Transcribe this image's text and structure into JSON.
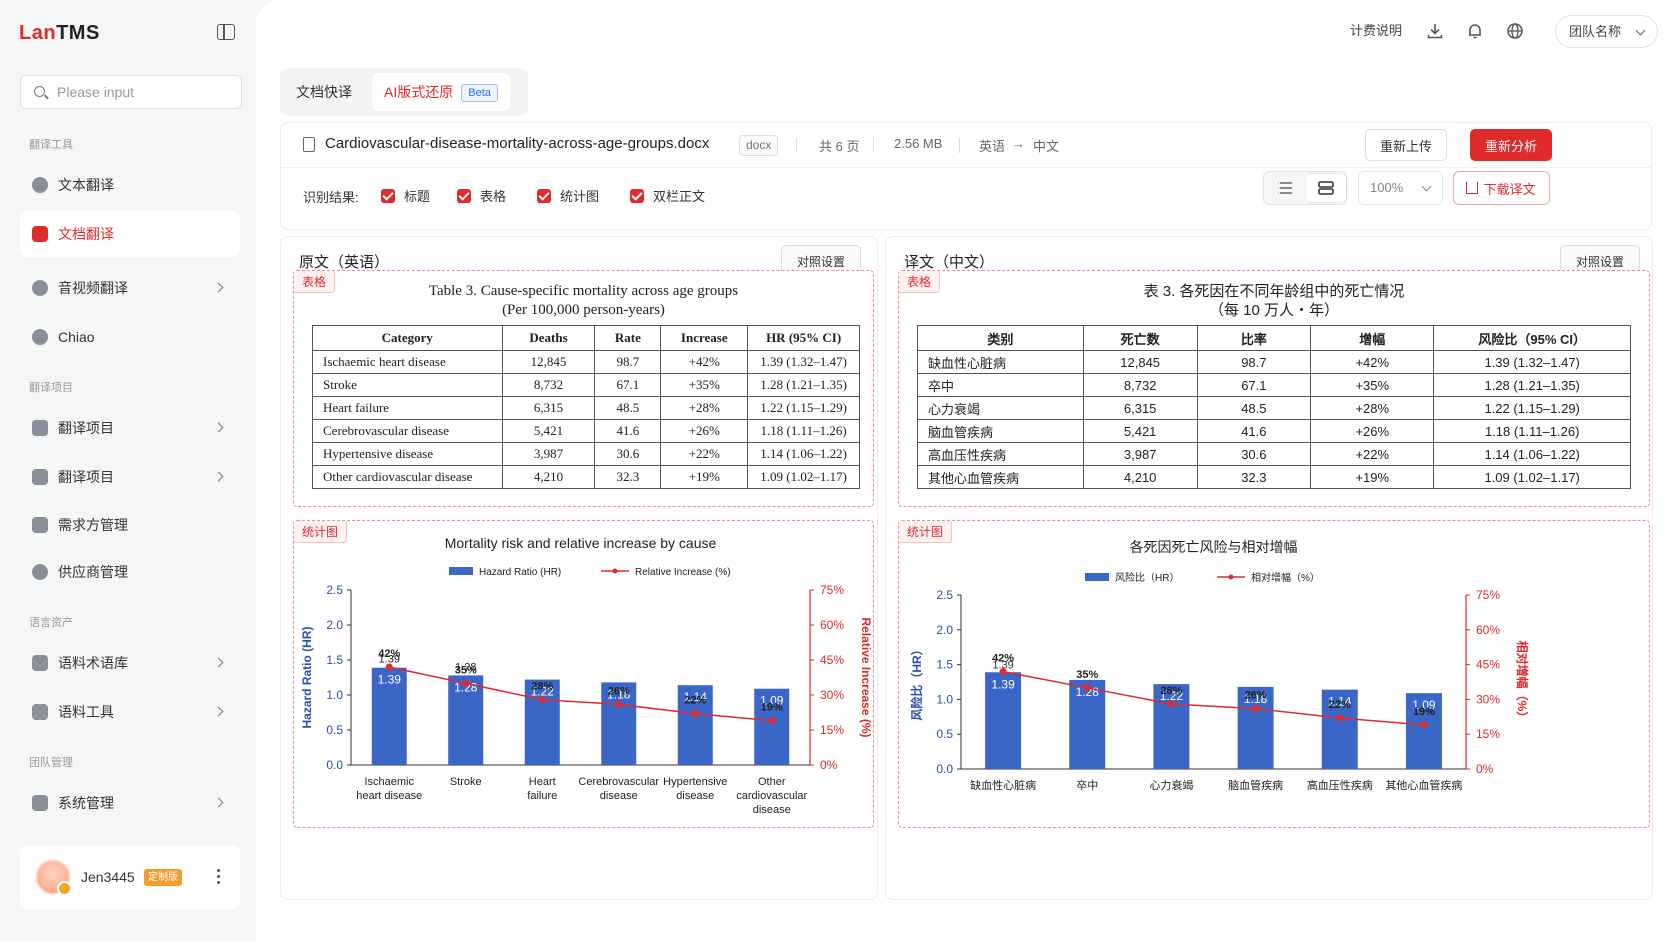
{
  "app": {
    "logo_prefix": "Lan",
    "logo_suffix": "TMS"
  },
  "sidebar": {
    "search_placeholder": "Please input",
    "groups": [
      "翻译工具",
      "翻译项目",
      "语言资产",
      "团队管理"
    ],
    "items": [
      {
        "label": "文本翻译",
        "icon": "text-translate-icon"
      },
      {
        "label": "文档翻译",
        "icon": "document-translate-icon",
        "active": true
      },
      {
        "label": "音视频翻译",
        "icon": "media-translate-icon"
      },
      {
        "label": "Chiao",
        "icon": "chiao-icon"
      },
      {
        "label": "翻译项目",
        "icon": "project-icon"
      },
      {
        "label": "翻译项目",
        "icon": "project-icon"
      },
      {
        "label": "需求方管理",
        "icon": "client-icon"
      },
      {
        "label": "供应商管理",
        "icon": "vendor-icon"
      },
      {
        "label": "语料术语库",
        "icon": "termbase-icon"
      },
      {
        "label": "语料工具",
        "icon": "corpus-tool-icon"
      },
      {
        "label": "系统管理",
        "icon": "system-icon"
      }
    ],
    "user": {
      "name": "Jen3445",
      "badge": "定制版"
    }
  },
  "topbar": {
    "billing": "计费说明",
    "team": "团队名称"
  },
  "mode_tabs": {
    "quick": "文档快译",
    "ai": "AI版式还原",
    "beta": "Beta"
  },
  "file": {
    "name": "Cardiovascular-disease-mortality-across-age-groups.docx",
    "ext": "docx",
    "pages": "共 6 页",
    "size": "2.56 MB",
    "lang_from": "英语",
    "arrow": "→",
    "lang_to": "中文",
    "reupload": "重新上传",
    "reanalyze": "重新分析"
  },
  "recognition": {
    "label": "识别结果:",
    "options": [
      "标题",
      "表格",
      "统计图",
      "双栏正文"
    ],
    "zoom": "100%",
    "download": "下载译文"
  },
  "colors": {
    "accent": "#e02b2b",
    "bar": "#3a66c8",
    "line": "#e02b2b"
  },
  "left_panel": {
    "title": "原文（英语）",
    "compare_btn": "对照设置",
    "table_tag": "表格",
    "table_title_1": "Table 3. Cause-specific mortality across age groups",
    "table_title_2": "(Per 100,000 person-years)",
    "headers": [
      "Category",
      "Deaths",
      "Rate",
      "Increase",
      "HR (95% CI)"
    ],
    "rows": [
      [
        "Ischaemic heart disease",
        "12,845",
        "98.7",
        "+42%",
        "1.39 (1.32–1.47)"
      ],
      [
        "Stroke",
        "8,732",
        "67.1",
        "+35%",
        "1.28 (1.21–1.35)"
      ],
      [
        "Heart failure",
        "6,315",
        "48.5",
        "+28%",
        "1.22 (1.15–1.29)"
      ],
      [
        "Cerebrovascular disease",
        "5,421",
        "41.6",
        "+26%",
        "1.18 (1.11–1.26)"
      ],
      [
        "Hypertensive disease",
        "3,987",
        "30.6",
        "+22%",
        "1.14 (1.06–1.22)"
      ],
      [
        "Other cardiovascular disease",
        "4,210",
        "32.3",
        "+19%",
        "1.09 (1.02–1.17)"
      ]
    ],
    "chart_tag": "统计图"
  },
  "right_panel": {
    "title": "译文（中文）",
    "compare_btn": "对照设置",
    "table_tag": "表格",
    "table_title_1": "表 3. 各死因在不同年龄组中的死亡情况",
    "table_title_2": "（每 10 万人・年）",
    "headers": [
      "类别",
      "死亡数",
      "比率",
      "增幅",
      "风险比（95% CI）"
    ],
    "rows": [
      [
        "缺血性心脏病",
        "12,845",
        "98.7",
        "+42%",
        "1.39 (1.32–1.47)"
      ],
      [
        "卒中",
        "8,732",
        "67.1",
        "+35%",
        "1.28 (1.21–1.35)"
      ],
      [
        "心力衰竭",
        "6,315",
        "48.5",
        "+28%",
        "1.22 (1.15–1.29)"
      ],
      [
        "脑血管疾病",
        "5,421",
        "41.6",
        "+26%",
        "1.18 (1.11–1.26)"
      ],
      [
        "高血压性疾病",
        "3,987",
        "30.6",
        "+22%",
        "1.14 (1.06–1.22)"
      ],
      [
        "其他心血管疾病",
        "4,210",
        "32.3",
        "+19%",
        "1.09 (1.02–1.17)"
      ]
    ],
    "chart_tag": "统计图"
  },
  "chart_data": [
    {
      "type": "bar",
      "title": "Mortality risk and relative increase by cause",
      "categories": [
        [
          "Ischaemic",
          "heart disease"
        ],
        [
          "Stroke"
        ],
        [
          "Heart",
          "failure"
        ],
        [
          "Cerebrovascular",
          "disease"
        ],
        [
          "Hypertensive",
          "disease"
        ],
        [
          "Other",
          "cardiovascular",
          "disease"
        ]
      ],
      "series": [
        {
          "name": "Hazard Ratio (HR)",
          "kind": "bar",
          "axis": "left",
          "values": [
            1.39,
            1.28,
            1.22,
            1.18,
            1.14,
            1.09
          ]
        },
        {
          "name": "Relative Increase (%)",
          "kind": "line",
          "axis": "right",
          "values": [
            42,
            35,
            28,
            26,
            22,
            19
          ]
        }
      ],
      "ylabel": "Hazard Ratio (HR)",
      "ylabel_right": "Relative Increase (%)",
      "ylim": [
        0,
        2.5
      ],
      "yticks": [
        "0.0",
        "0.5",
        "1.0",
        "1.5",
        "2.0",
        "2.5"
      ],
      "ylim_right": [
        0,
        75
      ],
      "yticks_right": [
        "0%",
        "15%",
        "30%",
        "45%",
        "60%",
        "75%"
      ],
      "legend": "top-center",
      "grid": false
    },
    {
      "type": "bar",
      "title": "各死因死亡风险与相对增幅",
      "categories": [
        [
          "缺血性心脏病"
        ],
        [
          "卒中"
        ],
        [
          "心力衰竭"
        ],
        [
          "脑血管疾病"
        ],
        [
          "高血压性疾病"
        ],
        [
          "其他心血管疾病"
        ]
      ],
      "series": [
        {
          "name": "风险比（HR）",
          "kind": "bar",
          "axis": "left",
          "values": [
            1.39,
            1.28,
            1.22,
            1.18,
            1.14,
            1.09
          ]
        },
        {
          "name": "相对增幅（%）",
          "kind": "line",
          "axis": "right",
          "values": [
            42,
            35,
            28,
            26,
            22,
            19
          ]
        }
      ],
      "ylabel": "风险比（HR）",
      "ylabel_right": "相对增幅（%）",
      "ylim": [
        0,
        2.5
      ],
      "yticks": [
        "0.0",
        "0.5",
        "1.0",
        "1.5",
        "2.0",
        "2.5"
      ],
      "ylim_right": [
        0,
        75
      ],
      "yticks_right": [
        "0%",
        "15%",
        "30%",
        "45%",
        "60%",
        "75%"
      ],
      "legend": "top-center",
      "grid": false,
      "extra_label": "1.39"
    }
  ]
}
